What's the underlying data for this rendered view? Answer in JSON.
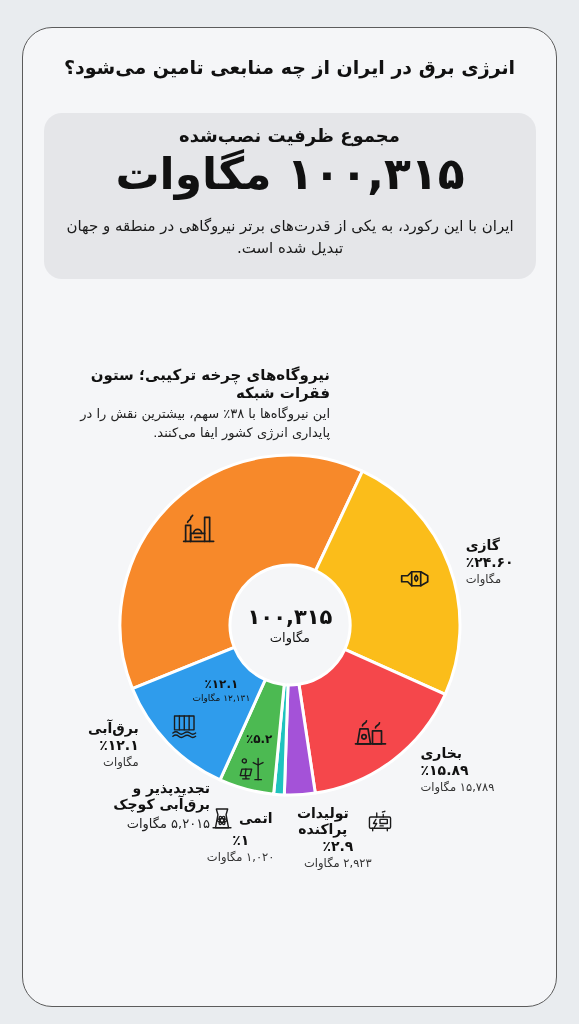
{
  "chart_data": {
    "type": "donut",
    "title": "انرژی برق در ایران از چه منابعی تامین می‌شود؟",
    "subtitle": "مجموع ظرفیت نصب‌شده",
    "categories": [
      "نیروگاه‌های چرخه ترکیبی؛ ستون فقرات شبکه",
      "گازی",
      "بخاری",
      "تولیدات پراکنده",
      "اتمی",
      "تجدیدپذیر و برق‌آبی کوچک",
      "برق‌آبی"
    ],
    "values": [
      38,
      24.6,
      15.89,
      2.9,
      1,
      5.2,
      12.1
    ],
    "colors": [
      "#f7892a",
      "#fbbd1a",
      "#f5474b",
      "#a452d8",
      "#1fc3bf",
      "#4cba52",
      "#2f9cec"
    ],
    "value_labels": [
      "این نیروگاه‌ها با ۳۸٪ سهم، بیشترین نقش را در پایداری انرژی کشور ایفا می‌کنند.",
      "٪۲۴.۶۰\nمگاوات",
      "٪۱۵.۸۹\n۱۵,۷۸۹ مگاوات",
      "٪۲.۹\n۲,۹۲۳ مگاوات",
      "٪۱\n۱,۰۲۰ مگاوات",
      "۵,۲۰۱۵ مگاوات",
      "٪۱۲.۱\nمگاوات"
    ],
    "annotations": [
      "۱۰۰,۳۱۵ مگاوات",
      "ایران با این رکورد، به یکی از قدرت‌های برتر نیروگاهی در منطقه و جهان تبدیل شده است.",
      "۱۰۰,۳۱۵\nمگاوات",
      {
        "text": "٪۱۲.۱\n۱۲,۱۳۱ مگاوات",
        "x": "برق‌آبی"
      },
      {
        "text": "٪۵.۲",
        "x": "تجدیدپذیر و برق‌آبی کوچک"
      }
    ]
  }
}
